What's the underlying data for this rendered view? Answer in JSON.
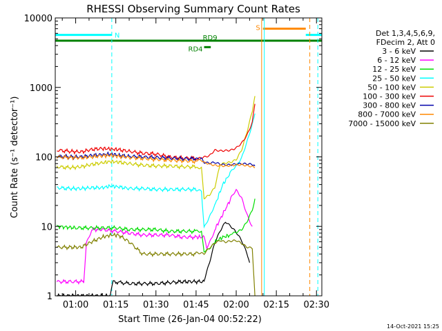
{
  "chart_data": {
    "type": "line",
    "title": "RHESSI Observing Summary Count Rates",
    "xlabel": "Start Time (26-Jan-04 00:52:22)",
    "ylabel": "Count Rate (s⁻¹ detector⁻¹)",
    "y_scale": "log",
    "ylim": [
      1,
      10000
    ],
    "xlim_minutes": [
      52.37,
      152
    ],
    "y_ticks": [
      {
        "value": 1,
        "label": "1"
      },
      {
        "value": 10,
        "label": "10"
      },
      {
        "value": 100,
        "label": "100"
      },
      {
        "value": 1000,
        "label": "1000"
      },
      {
        "value": 10000,
        "label": "10000"
      }
    ],
    "x_ticks": [
      {
        "minute": 60,
        "label": "01:00"
      },
      {
        "minute": 75,
        "label": "01:15"
      },
      {
        "minute": 90,
        "label": "01:30"
      },
      {
        "minute": 105,
        "label": "01:45"
      },
      {
        "minute": 120,
        "label": "02:00"
      },
      {
        "minute": 135,
        "label": "02:15"
      },
      {
        "minute": 150,
        "label": "02:30"
      }
    ],
    "legend_header": [
      "Det 1,3,4,5,6,9,",
      "FDecim 2, Att 0"
    ],
    "series": [
      {
        "name": "3 - 6 keV",
        "color": "#000000",
        "points": [
          [
            53,
            1
          ],
          [
            73,
            1
          ],
          [
            74,
            1.6
          ],
          [
            80,
            1.5
          ],
          [
            90,
            1.5
          ],
          [
            100,
            1.6
          ],
          [
            108,
            1.6
          ],
          [
            110,
            3
          ],
          [
            112,
            6
          ],
          [
            114,
            9
          ],
          [
            116,
            12
          ],
          [
            118,
            10
          ],
          [
            120,
            8
          ],
          [
            122,
            6
          ],
          [
            124,
            4
          ],
          [
            125,
            3
          ]
        ]
      },
      {
        "name": "6 - 12 keV",
        "color": "#ff00ff",
        "points": [
          [
            53,
            1.6
          ],
          [
            58,
            1.6
          ],
          [
            63,
            1.6
          ],
          [
            64,
            6
          ],
          [
            66,
            9
          ],
          [
            70,
            9
          ],
          [
            75,
            8.5
          ],
          [
            80,
            8
          ],
          [
            85,
            7.5
          ],
          [
            90,
            7.5
          ],
          [
            95,
            7.5
          ],
          [
            100,
            7
          ],
          [
            105,
            7
          ],
          [
            108,
            7
          ],
          [
            109,
            5
          ],
          [
            110,
            6
          ],
          [
            112,
            9
          ],
          [
            115,
            15
          ],
          [
            118,
            25
          ],
          [
            120,
            32
          ],
          [
            122,
            25
          ],
          [
            124,
            15
          ],
          [
            126,
            10
          ]
        ]
      },
      {
        "name": "12 - 25 keV",
        "color": "#00dd00",
        "points": [
          [
            53,
            10
          ],
          [
            60,
            9.5
          ],
          [
            65,
            9.5
          ],
          [
            70,
            9.5
          ],
          [
            75,
            9.5
          ],
          [
            80,
            9
          ],
          [
            85,
            9
          ],
          [
            90,
            9
          ],
          [
            95,
            8.5
          ],
          [
            100,
            8.5
          ],
          [
            105,
            8.5
          ],
          [
            107,
            8.5
          ],
          [
            108,
            4.5
          ],
          [
            110,
            5
          ],
          [
            112,
            6
          ],
          [
            115,
            7
          ],
          [
            118,
            7.5
          ],
          [
            120,
            8
          ],
          [
            122,
            9
          ],
          [
            124,
            12
          ],
          [
            126,
            18
          ],
          [
            127,
            25
          ]
        ]
      },
      {
        "name": "25 - 50 keV",
        "color": "#00ffff",
        "points": [
          [
            53,
            36
          ],
          [
            58,
            35
          ],
          [
            62,
            35
          ],
          [
            66,
            36
          ],
          [
            70,
            36
          ],
          [
            73,
            38
          ],
          [
            76,
            37
          ],
          [
            80,
            35
          ],
          [
            85,
            35
          ],
          [
            90,
            34
          ],
          [
            95,
            34
          ],
          [
            100,
            34
          ],
          [
            105,
            34
          ],
          [
            107,
            34
          ],
          [
            108,
            10
          ],
          [
            110,
            14
          ],
          [
            112,
            20
          ],
          [
            115,
            40
          ],
          [
            118,
            60
          ],
          [
            120,
            75
          ],
          [
            122,
            100
          ],
          [
            124,
            170
          ],
          [
            126,
            300
          ],
          [
            127,
            420
          ]
        ]
      },
      {
        "name": "50 - 100 keV",
        "color": "#cccc00",
        "points": [
          [
            53,
            72
          ],
          [
            58,
            70
          ],
          [
            62,
            72
          ],
          [
            66,
            78
          ],
          [
            70,
            82
          ],
          [
            73,
            86
          ],
          [
            76,
            84
          ],
          [
            80,
            80
          ],
          [
            85,
            76
          ],
          [
            90,
            74
          ],
          [
            95,
            74
          ],
          [
            100,
            72
          ],
          [
            105,
            72
          ],
          [
            107,
            72
          ],
          [
            108,
            26
          ],
          [
            110,
            28
          ],
          [
            112,
            35
          ],
          [
            114,
            75
          ],
          [
            116,
            80
          ],
          [
            118,
            85
          ],
          [
            120,
            95
          ],
          [
            122,
            130
          ],
          [
            124,
            230
          ],
          [
            126,
            450
          ],
          [
            127,
            750
          ]
        ]
      },
      {
        "name": "100 - 300 keV",
        "color": "#ee0000",
        "points": [
          [
            53,
            125
          ],
          [
            58,
            120
          ],
          [
            62,
            118
          ],
          [
            66,
            128
          ],
          [
            70,
            132
          ],
          [
            73,
            130
          ],
          [
            76,
            127
          ],
          [
            80,
            120
          ],
          [
            85,
            113
          ],
          [
            90,
            110
          ],
          [
            95,
            100
          ],
          [
            100,
            96
          ],
          [
            105,
            96
          ],
          [
            107,
            98
          ],
          [
            108,
            98
          ],
          [
            110,
            100
          ],
          [
            112,
            120
          ],
          [
            114,
            120
          ],
          [
            116,
            125
          ],
          [
            118,
            130
          ],
          [
            120,
            140
          ],
          [
            122,
            160
          ],
          [
            124,
            200
          ],
          [
            126,
            300
          ],
          [
            127,
            580
          ]
        ]
      },
      {
        "name": "300 - 800 keV",
        "color": "#0000aa",
        "points": [
          [
            53,
            103
          ],
          [
            58,
            100
          ],
          [
            62,
            100
          ],
          [
            66,
            105
          ],
          [
            70,
            108
          ],
          [
            73,
            110
          ],
          [
            76,
            106
          ],
          [
            80,
            102
          ],
          [
            85,
            100
          ],
          [
            90,
            98
          ],
          [
            95,
            96
          ],
          [
            100,
            94
          ],
          [
            105,
            94
          ],
          [
            107,
            92
          ],
          [
            108,
            80
          ],
          [
            110,
            78
          ],
          [
            112,
            82
          ],
          [
            114,
            80
          ],
          [
            116,
            80
          ],
          [
            118,
            80
          ],
          [
            120,
            80
          ],
          [
            122,
            78
          ],
          [
            124,
            76
          ],
          [
            126,
            75
          ],
          [
            127,
            74
          ]
        ]
      },
      {
        "name": "800 - 7000 keV",
        "color": "#ff8800",
        "points": [
          [
            53,
            100
          ],
          [
            58,
            98
          ],
          [
            62,
            97
          ],
          [
            66,
            100
          ],
          [
            70,
            104
          ],
          [
            73,
            105
          ],
          [
            76,
            102
          ],
          [
            80,
            98
          ],
          [
            85,
            95
          ],
          [
            90,
            92
          ],
          [
            95,
            90
          ],
          [
            100,
            88
          ],
          [
            105,
            86
          ],
          [
            107,
            86
          ],
          [
            108,
            80
          ],
          [
            110,
            78
          ],
          [
            112,
            77
          ],
          [
            114,
            78
          ],
          [
            116,
            77
          ],
          [
            118,
            76
          ],
          [
            120,
            75
          ],
          [
            122,
            74
          ],
          [
            124,
            72
          ],
          [
            126,
            72
          ],
          [
            127,
            70
          ]
        ]
      },
      {
        "name": "7000 - 15000 keV",
        "color": "#808000",
        "points": [
          [
            53,
            5
          ],
          [
            58,
            5
          ],
          [
            62,
            5
          ],
          [
            66,
            6
          ],
          [
            70,
            7
          ],
          [
            73,
            7.5
          ],
          [
            76,
            7.5
          ],
          [
            80,
            6
          ],
          [
            85,
            4
          ],
          [
            90,
            4
          ],
          [
            95,
            4
          ],
          [
            100,
            4
          ],
          [
            105,
            4
          ],
          [
            107,
            4
          ],
          [
            108,
            4
          ],
          [
            110,
            5
          ],
          [
            112,
            6
          ],
          [
            114,
            6.5
          ],
          [
            116,
            6
          ],
          [
            118,
            6
          ],
          [
            120,
            6
          ],
          [
            122,
            5.5
          ],
          [
            124,
            5
          ],
          [
            126,
            5
          ],
          [
            127,
            1
          ]
        ]
      }
    ],
    "flag_bars": [
      {
        "label": "N",
        "color": "#00ffff",
        "start": 52.4,
        "end": 73.5,
        "y_value": 5700
      },
      {
        "label": "S",
        "color": "#ff8800",
        "start": 130,
        "end": 146,
        "y_value": 7000
      },
      {
        "label": "",
        "color": "#00ffff",
        "start": 146,
        "end": 152,
        "y_value": 5700
      },
      {
        "label": "RD9",
        "color": "#008000",
        "start": 52.4,
        "end": 152,
        "y_value": 4700
      },
      {
        "label": "RD4",
        "color": "#008000",
        "start": 108,
        "end": 110.5,
        "y_value": 3800
      }
    ],
    "vertical_markers": [
      {
        "minute": 73.5,
        "color": "#00ffff",
        "style": "dashed"
      },
      {
        "minute": 129.5,
        "color": "#ff8800",
        "style": "solid"
      },
      {
        "minute": 130.5,
        "color": "#00ffff",
        "style": "solid"
      },
      {
        "minute": 147.5,
        "color": "#ff8800",
        "style": "dashed"
      },
      {
        "minute": 150.5,
        "color": "#00ffff",
        "style": "dashed"
      }
    ],
    "grid": false,
    "legend_placement": "right"
  },
  "footer": {
    "date": "14-Oct-2021 15:25"
  }
}
